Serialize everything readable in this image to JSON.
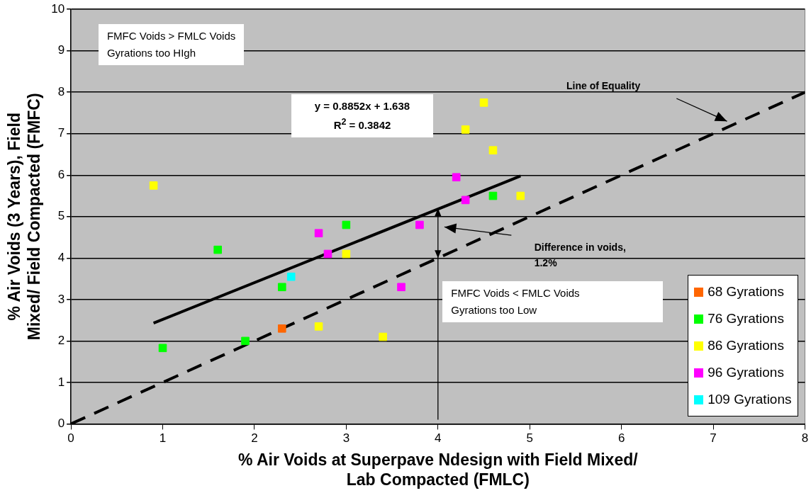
{
  "chart_data": {
    "type": "scatter",
    "xlabel": "% Air Voids at Superpave Ndesign with Field Mixed/\nLab Compacted (FMLC)",
    "ylabel": "% Air Voids (3 Years), Field\nMixed/ Field Compacted (FMFC)",
    "xlim": [
      0,
      8
    ],
    "xticks": [
      0,
      1,
      2,
      3,
      4,
      5,
      6,
      7,
      8
    ],
    "ylim": [
      0,
      10
    ],
    "yticks": [
      0,
      1,
      2,
      3,
      4,
      5,
      6,
      7,
      8,
      9,
      10
    ],
    "grid": "y",
    "legend": "bottom right",
    "marker": "square",
    "series": [
      {
        "name": "68 Gyrations",
        "color": "#ff6600",
        "x": [
          2.3
        ],
        "values": [
          2.3
        ]
      },
      {
        "name": "76 Gyrations",
        "color": "#00ff00",
        "x": [
          1.0,
          1.6,
          1.9,
          2.3,
          3.0,
          4.6
        ],
        "values": [
          1.83,
          4.2,
          2.0,
          3.3,
          4.8,
          5.5
        ]
      },
      {
        "name": "86 Gyrations",
        "color": "#ffff00",
        "x": [
          0.9,
          2.7,
          3.0,
          3.4,
          4.3,
          4.5,
          4.6,
          4.9
        ],
        "values": [
          5.75,
          2.35,
          4.1,
          2.1,
          7.1,
          7.75,
          6.6,
          5.5
        ]
      },
      {
        "name": "96 Gyrations",
        "color": "#ff00ff",
        "x": [
          2.7,
          2.8,
          3.6,
          3.8,
          4.2,
          4.3
        ],
        "values": [
          4.6,
          4.1,
          3.3,
          4.8,
          5.95,
          5.4
        ]
      },
      {
        "name": "109 Gyrations",
        "color": "#00ffff",
        "x": [
          2.4
        ],
        "values": [
          3.55
        ]
      },
      {
        "type": "line",
        "color": "#000000",
        "line_style": "solid",
        "marker": "none",
        "x": [
          0.9,
          4.9
        ],
        "values": [
          2.43,
          5.98
        ]
      },
      {
        "type": "line",
        "color": "#000000",
        "line_style": "dashed",
        "marker": "none",
        "x": [
          0,
          8
        ],
        "values": [
          0,
          8
        ]
      }
    ],
    "annotations": [
      "FMFC Voids > FMLC Voids\nGyrations too HIgh",
      "y = 0.8852x + 1.638\nR$^{2}$ = 0.3842",
      "Line of Equality",
      "Difference in voids,\n1.2%",
      "FMFC Voids < FMLC Voids\nGyrations too Low"
    ]
  }
}
